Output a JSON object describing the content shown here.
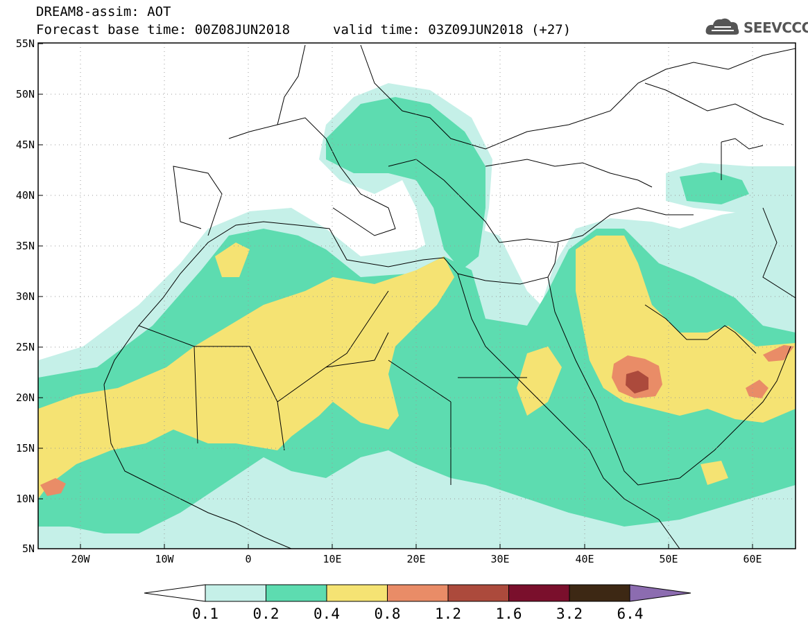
{
  "header": {
    "title": "DREAM8-assim: AOT",
    "base_time": "Forecast base time: 00Z08JUN2018",
    "valid_time": "valid time: 03Z09JUN2018 (+27)"
  },
  "logo": {
    "text": "SEEVCCC",
    "icon": "cloud-icon"
  },
  "map": {
    "lat_range": [
      5,
      55
    ],
    "lon_range": [
      -25,
      65
    ],
    "lat_labels": [
      "55N",
      "50N",
      "45N",
      "40N",
      "35N",
      "30N",
      "25N",
      "20N",
      "15N",
      "10N",
      "5N"
    ],
    "lon_labels": [
      "20W",
      "10W",
      "0",
      "10E",
      "20E",
      "30E",
      "40E",
      "50E",
      "60E"
    ],
    "grid": "dotted"
  },
  "colorbar": {
    "labels": [
      "0.1",
      "0.2",
      "0.4",
      "0.8",
      "1.2",
      "1.6",
      "3.2",
      "6.4"
    ],
    "colors": [
      "#c5f0e8",
      "#5ddcb0",
      "#f5e373",
      "#e98c67",
      "#ac4a3c",
      "#7a0f2c",
      "#3d2814",
      "#8c6cb0"
    ]
  }
}
